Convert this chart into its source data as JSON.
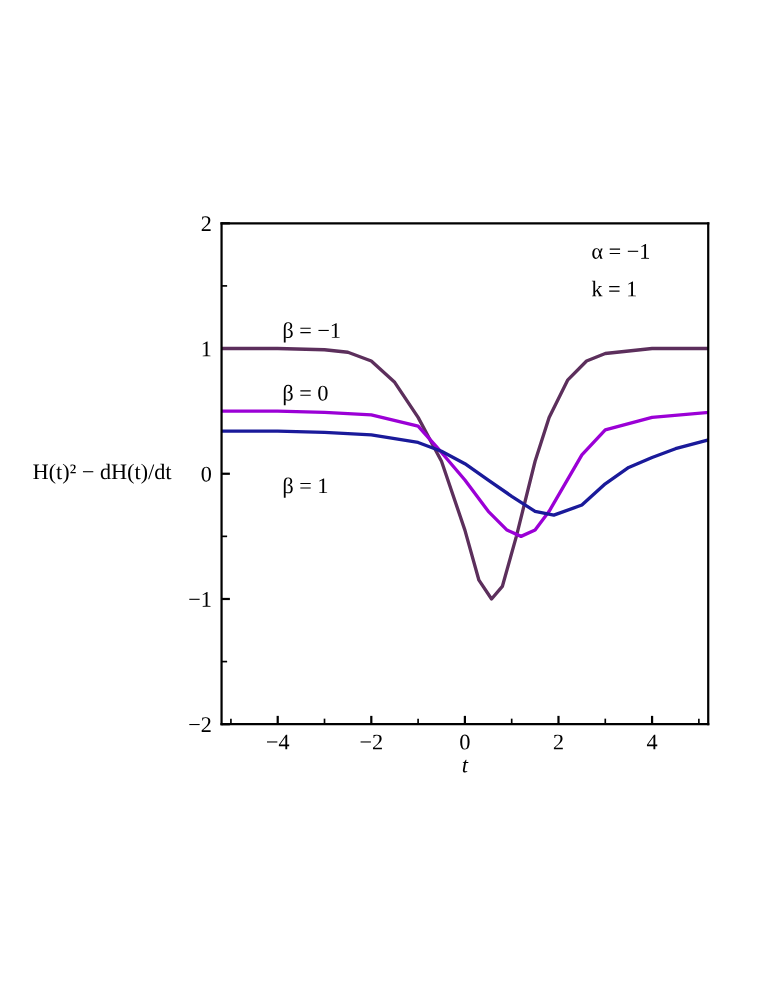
{
  "chart_data": {
    "type": "line",
    "xlabel": "t",
    "ylabel": "H(t)² − dH(t)/dt",
    "annotations": [
      "α = −1",
      "k = 1"
    ],
    "xlim": [
      -5.2,
      5.2
    ],
    "ylim": [
      -2,
      2
    ],
    "xticks": [
      {
        "value": -4,
        "label": "−4"
      },
      {
        "value": -2,
        "label": "−2"
      },
      0,
      2,
      4
    ],
    "yticks": [
      {
        "value": -2,
        "label": "−2"
      },
      {
        "value": -1,
        "label": "−1"
      },
      0,
      1,
      2
    ],
    "grid": false,
    "legend": false,
    "marker": "none",
    "line_style": "solid",
    "series": [
      {
        "name": "β = −1",
        "color": "#5c2f5c",
        "x": [
          -5.2,
          -4,
          -3,
          -2.5,
          -2,
          -1.5,
          -1,
          -0.5,
          0,
          0.3,
          0.57,
          0.8,
          1.1,
          1.5,
          1.8,
          2.2,
          2.6,
          3,
          4,
          5.2
        ],
        "values": [
          1,
          1,
          0.99,
          0.97,
          0.9,
          0.73,
          0.45,
          0.1,
          -0.45,
          -0.85,
          -1.0,
          -0.9,
          -0.5,
          0.1,
          0.45,
          0.75,
          0.9,
          0.96,
          1,
          1
        ]
      },
      {
        "name": "β = 0",
        "color": "#9b00d6",
        "x": [
          -5.2,
          -4,
          -3,
          -2,
          -1,
          -0.5,
          0,
          0.5,
          0.9,
          1.2,
          1.5,
          1.8,
          2.5,
          3,
          4,
          5.2
        ],
        "values": [
          0.5,
          0.5,
          0.49,
          0.47,
          0.38,
          0.17,
          -0.05,
          -0.3,
          -0.45,
          -0.5,
          -0.45,
          -0.3,
          0.15,
          0.35,
          0.45,
          0.49
        ]
      },
      {
        "name": "β = 1",
        "color": "#1a1a9a",
        "x": [
          -5.2,
          -4,
          -3,
          -2,
          -1,
          -0.5,
          0,
          0.5,
          1,
          1.5,
          1.9,
          2.5,
          3,
          3.5,
          4,
          4.5,
          5.2
        ],
        "values": [
          0.34,
          0.34,
          0.33,
          0.31,
          0.25,
          0.18,
          0.08,
          -0.05,
          -0.18,
          -0.3,
          -0.33,
          -0.25,
          -0.08,
          0.05,
          0.13,
          0.2,
          0.27
        ]
      }
    ]
  }
}
